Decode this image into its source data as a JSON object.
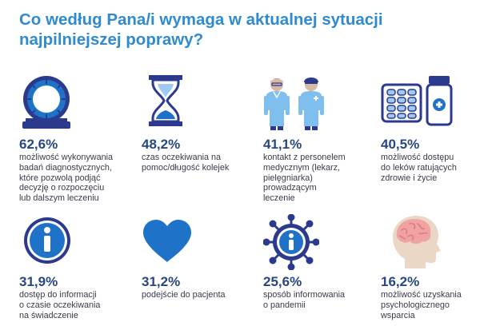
{
  "title": {
    "line1": "Co według Pana/i wymaga w aktualnej sytuacji",
    "line2": "najpilniejszej poprawy?"
  },
  "colors": {
    "title": "#2e8bd0",
    "percent": "#27477f",
    "icon_dark": "#2c3a8e",
    "icon_blue": "#1e73c9",
    "icon_light": "#9ecbf2",
    "text": "#3a3a4a"
  },
  "items": [
    {
      "icon": "ct-scanner-icon",
      "percent": "62,6%",
      "lines": [
        "możliwość wykonywania",
        "badań diagnostycznych,",
        "które pozwolą podjąć",
        "decyzję o rozpoczęciu",
        "lub dalszym leczeniu"
      ]
    },
    {
      "icon": "hourglass-icon",
      "percent": "48,2%",
      "lines": [
        "czas oczekiwania na",
        "pomoc/długość kolejek"
      ]
    },
    {
      "icon": "medical-staff-icon",
      "percent": "41,1%",
      "lines": [
        "kontakt z personelem",
        "medycznym (lekarz,",
        "pielęgniarka)",
        "prowadzącym",
        "leczenie"
      ]
    },
    {
      "icon": "medicine-pills-icon",
      "percent": "40,5%",
      "lines": [
        "możliwość dostępu",
        "do leków ratujących",
        "zdrowie i życie"
      ]
    },
    {
      "icon": "info-icon",
      "percent": "31,9%",
      "lines": [
        "dostęp do informacji",
        "o czasie oczekiwania",
        "na świadczenie"
      ]
    },
    {
      "icon": "heart-icon",
      "percent": "31,2%",
      "lines": [
        "podejście do pacjenta"
      ]
    },
    {
      "icon": "virus-info-icon",
      "percent": "25,6%",
      "lines": [
        "sposób informowania",
        "o pandemii"
      ]
    },
    {
      "icon": "head-brain-icon",
      "percent": "16,2%",
      "lines": [
        "możliwość uzyskania",
        "psychologicznego",
        "wsparcia"
      ]
    }
  ]
}
